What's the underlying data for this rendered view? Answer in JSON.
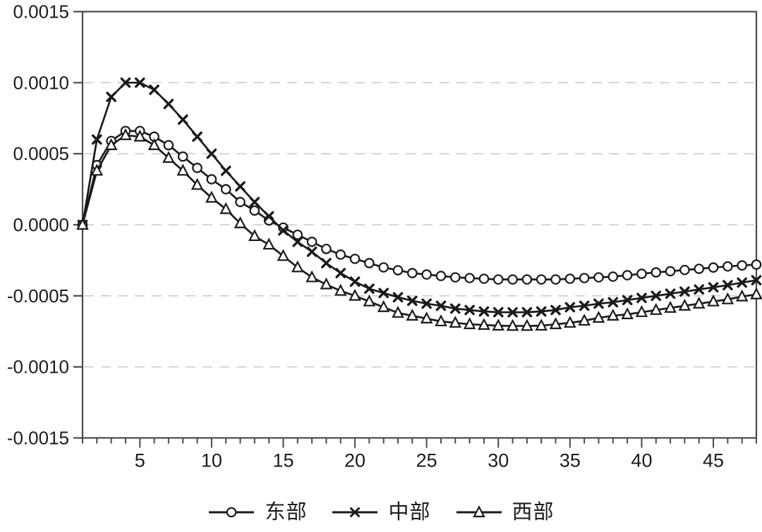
{
  "chart_data": {
    "type": "line",
    "title": "",
    "xlabel": "",
    "ylabel": "",
    "x": [
      1,
      2,
      3,
      4,
      5,
      6,
      7,
      8,
      9,
      10,
      11,
      12,
      13,
      14,
      15,
      16,
      17,
      18,
      19,
      20,
      21,
      22,
      23,
      24,
      25,
      26,
      27,
      28,
      29,
      30,
      31,
      32,
      33,
      34,
      35,
      36,
      37,
      38,
      39,
      40,
      41,
      42,
      43,
      44,
      45,
      46,
      47,
      48
    ],
    "series": [
      {
        "name": "东部",
        "marker": "circle",
        "values": [
          0.0,
          0.00042,
          0.00059,
          0.00066,
          0.00066,
          0.00062,
          0.00056,
          0.00048,
          0.0004,
          0.00032,
          0.00025,
          0.00016,
          0.0001,
          3e-05,
          -2e-05,
          -7e-05,
          -0.00012,
          -0.00017,
          -0.00021,
          -0.00024,
          -0.00027,
          -0.0003,
          -0.00032,
          -0.00034,
          -0.00035,
          -0.00036,
          -0.00037,
          -0.000375,
          -0.00038,
          -0.000385,
          -0.000385,
          -0.000385,
          -0.000385,
          -0.000385,
          -0.00038,
          -0.000375,
          -0.00037,
          -0.000365,
          -0.000355,
          -0.000345,
          -0.000335,
          -0.000327,
          -0.000318,
          -0.00031,
          -0.000301,
          -0.000293,
          -0.000286,
          -0.00028
        ]
      },
      {
        "name": "中部",
        "marker": "x",
        "values": [
          0.0,
          0.0006,
          0.0009,
          0.001,
          0.001,
          0.00095,
          0.00085,
          0.00074,
          0.00062,
          0.0005,
          0.00038,
          0.00027,
          0.00016,
          6e-05,
          -4e-05,
          -0.00012,
          -0.00019,
          -0.00027,
          -0.00034,
          -0.0004,
          -0.00045,
          -0.00048,
          -0.00051,
          -0.000535,
          -0.000555,
          -0.00057,
          -0.00059,
          -0.0006,
          -0.00061,
          -0.000615,
          -0.000616,
          -0.000615,
          -0.00061,
          -0.0006,
          -0.00058,
          -0.00057,
          -0.000555,
          -0.000545,
          -0.00053,
          -0.000515,
          -0.0005,
          -0.000485,
          -0.00047,
          -0.000455,
          -0.00044,
          -0.000425,
          -0.000407,
          -0.00039
        ]
      },
      {
        "name": "西部",
        "marker": "triangle",
        "values": [
          0.0,
          0.00038,
          0.00056,
          0.00063,
          0.00062,
          0.00056,
          0.00047,
          0.00038,
          0.00028,
          0.00019,
          0.00011,
          1e-05,
          -8e-05,
          -0.00014,
          -0.00022,
          -0.0003,
          -0.00037,
          -0.00042,
          -0.000465,
          -0.0005,
          -0.00054,
          -0.00058,
          -0.00062,
          -0.00064,
          -0.00066,
          -0.00068,
          -0.00069,
          -0.0007,
          -0.000705,
          -0.00071,
          -0.000712,
          -0.000712,
          -0.00071,
          -0.0007,
          -0.00069,
          -0.000675,
          -0.000655,
          -0.00064,
          -0.00063,
          -0.000615,
          -0.0006,
          -0.000585,
          -0.00057,
          -0.000555,
          -0.00054,
          -0.000525,
          -0.000505,
          -0.00049
        ]
      }
    ],
    "y_axis": {
      "min": -0.0015,
      "max": 0.0015,
      "tick_values": [
        0.0015,
        0.001,
        0.0005,
        0.0,
        -0.0005,
        -0.001,
        -0.0015
      ],
      "tick_labels": [
        "0.0015",
        "0.0010",
        "0.0005",
        "0.0000",
        "-0.0005",
        "-0.0010",
        "-0.0015"
      ]
    },
    "x_axis": {
      "min": 1,
      "max": 48,
      "major_ticks": [
        5,
        10,
        15,
        20,
        25,
        30,
        35,
        40,
        45
      ],
      "major_tick_labels": [
        "5",
        "10",
        "15",
        "20",
        "25",
        "30",
        "35",
        "40",
        "45"
      ],
      "minor_tick_step": 1
    },
    "grid": {
      "horizontal": true,
      "style": "dashed",
      "color": "#cccccc"
    },
    "legend": {
      "position": "bottom-center",
      "entries": [
        "东部",
        "中部",
        "西部"
      ]
    }
  },
  "colors": {
    "line": "#1a1a1a",
    "marker_fill": "#ffffff",
    "frame": "#4a4a4a",
    "grid": "#cccccc",
    "text": "#1c1c1c",
    "background": "#ffffff"
  }
}
